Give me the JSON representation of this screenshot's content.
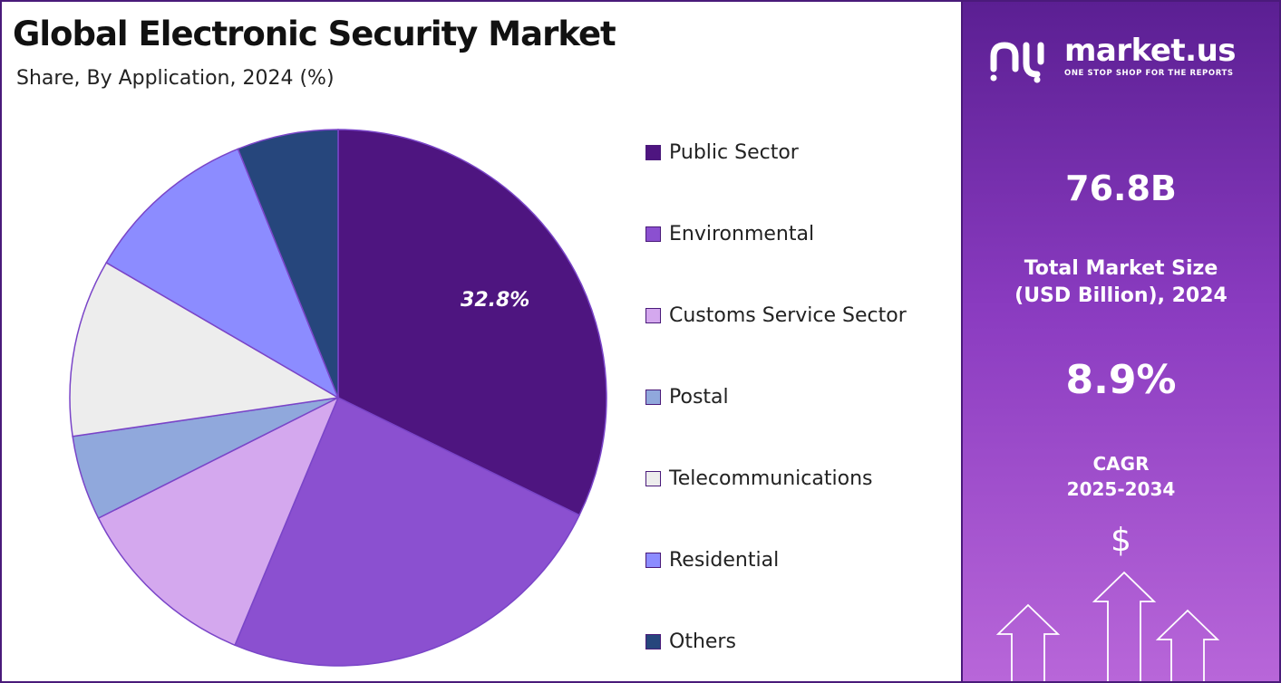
{
  "header": {
    "title": "Global Electronic Security Market",
    "subtitle": "Share, By Application, 2024 (%)"
  },
  "chart_data": {
    "type": "pie",
    "categories": [
      "Public Sector",
      "Environmental",
      "Customs Service Sector",
      "Postal",
      "Telecommunications",
      "Residential",
      "Others"
    ],
    "values": [
      32.8,
      24.5,
      11.5,
      5.2,
      10.9,
      10.7,
      6.2
    ],
    "colors": [
      "#4e1580",
      "#8b50d0",
      "#d4a8ee",
      "#90a8dc",
      "#ededed",
      "#8c8cff",
      "#26467c"
    ],
    "data_labels": [
      {
        "category": "Public Sector",
        "text": "32.8%"
      }
    ],
    "legend_position": "right",
    "start_angle": "top, clockwise"
  },
  "sidebar": {
    "brand_name": "market.us",
    "brand_tagline": "ONE STOP SHOP FOR THE REPORTS",
    "market_size_value": "76.8B",
    "market_size_label_line1": "Total Market Size",
    "market_size_label_line2": "(USD Billion), 2024",
    "cagr_value": "8.9%",
    "cagr_label_line1": "CAGR",
    "cagr_label_line2": "2025-2034",
    "currency_symbol": "$"
  },
  "icons": [
    "market-us-logo-icon",
    "dollar-icon",
    "growth-arrows-icon"
  ]
}
